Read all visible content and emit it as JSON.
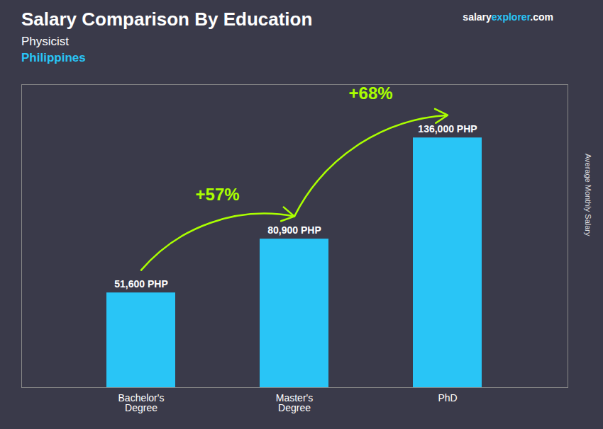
{
  "chart_data": {
    "type": "bar",
    "title": "Salary Comparison By Education",
    "subtitle": [
      {
        "text": "Physicist"
      },
      {
        "text": "Philippines",
        "color": "#29c5f6"
      }
    ],
    "ylabel": "Average Monthly Salary",
    "categories": [
      "Bachelor's\nDegree",
      "Master's\nDegree",
      "PhD"
    ],
    "values": [
      51600,
      80900,
      136000
    ],
    "value_labels": [
      "51,600 PHP",
      "80,900 PHP",
      "136,000 PHP"
    ],
    "data_labels": true,
    "color": "#29c5f6",
    "ylim": [
      0,
      165000
    ],
    "tick_labels": "x",
    "annotations": [
      {
        "text": "+57%",
        "from": "Bachelor's\nDegree",
        "to": "Master's\nDegree",
        "color": "#aaff00"
      },
      {
        "text": "+68%",
        "from": "Master's\nDegree",
        "to": "PhD",
        "color": "#aaff00"
      },
      {
        "text": "salary",
        "color": "#ffffff"
      },
      {
        "text": "explorer",
        "color": "#29c5f6"
      },
      {
        "text": ".com",
        "color": "#ffffff"
      }
    ]
  }
}
